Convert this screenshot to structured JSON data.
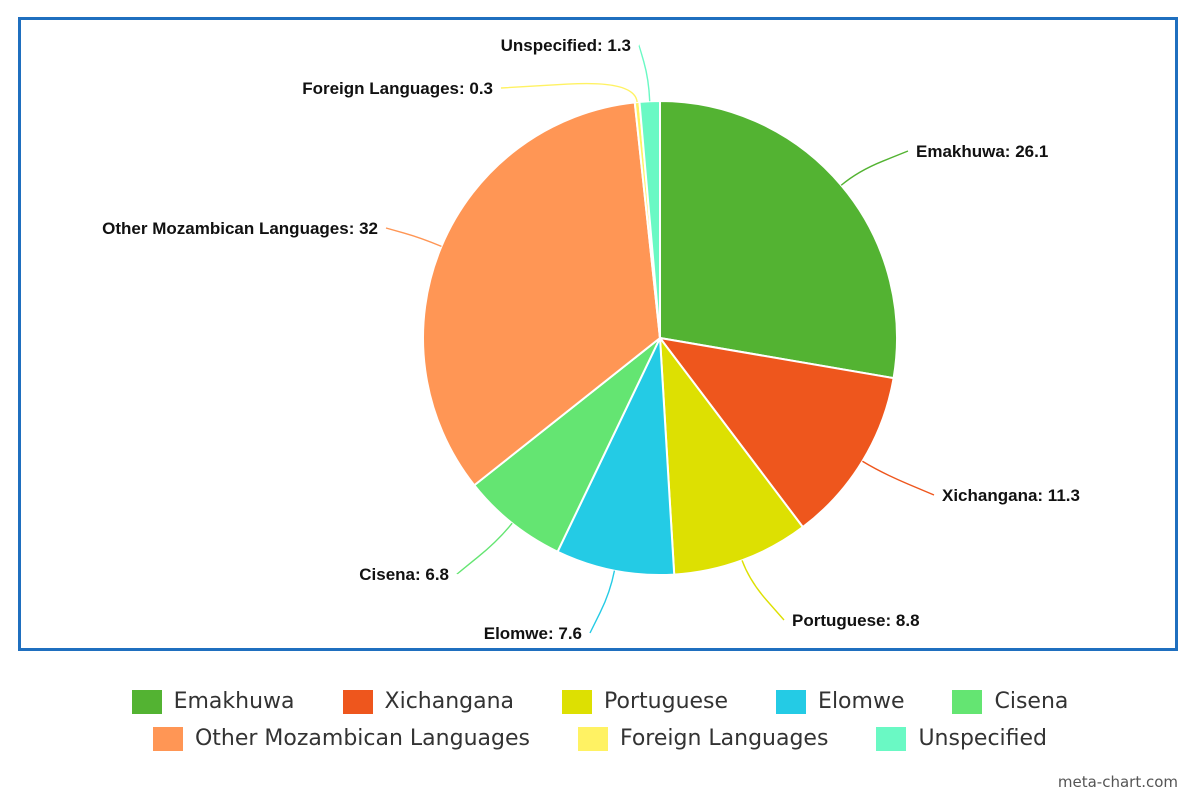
{
  "chart_data": {
    "type": "pie",
    "title": "",
    "slices": [
      {
        "label": "Emakhuwa",
        "value": 26.1,
        "color": "#53b332",
        "text": "Emakhuwa: 26.1"
      },
      {
        "label": "Xichangana",
        "value": 11.3,
        "color": "#ee561d",
        "text": "Xichangana: 11.3"
      },
      {
        "label": "Portuguese",
        "value": 8.8,
        "color": "#dde002",
        "text": "Portuguese: 8.8"
      },
      {
        "label": "Elomwe",
        "value": 7.6,
        "color": "#24cbe5",
        "text": "Elomwe: 7.6"
      },
      {
        "label": "Cisena",
        "value": 6.8,
        "color": "#64e572",
        "text": "Cisena: 6.8"
      },
      {
        "label": "Other Mozambican Languages",
        "value": 32,
        "color": "#ff9655",
        "text": "Other Mozambican Languages: 32"
      },
      {
        "label": "Foreign Languages",
        "value": 0.3,
        "color": "#fff263",
        "text": "Foreign Languages: 0.3"
      },
      {
        "label": "Unspecified",
        "value": 1.3,
        "color": "#6af9c4",
        "text": "Unspecified: 1.3"
      }
    ],
    "legend_position": "bottom"
  },
  "legend": {
    "row1": [
      "Emakhuwa",
      "Xichangana",
      "Portuguese",
      "Elomwe",
      "Cisena"
    ],
    "row2": [
      "Other Mozambican Languages",
      "Foreign Languages",
      "Unspecified"
    ]
  },
  "credit": "meta-chart.com"
}
